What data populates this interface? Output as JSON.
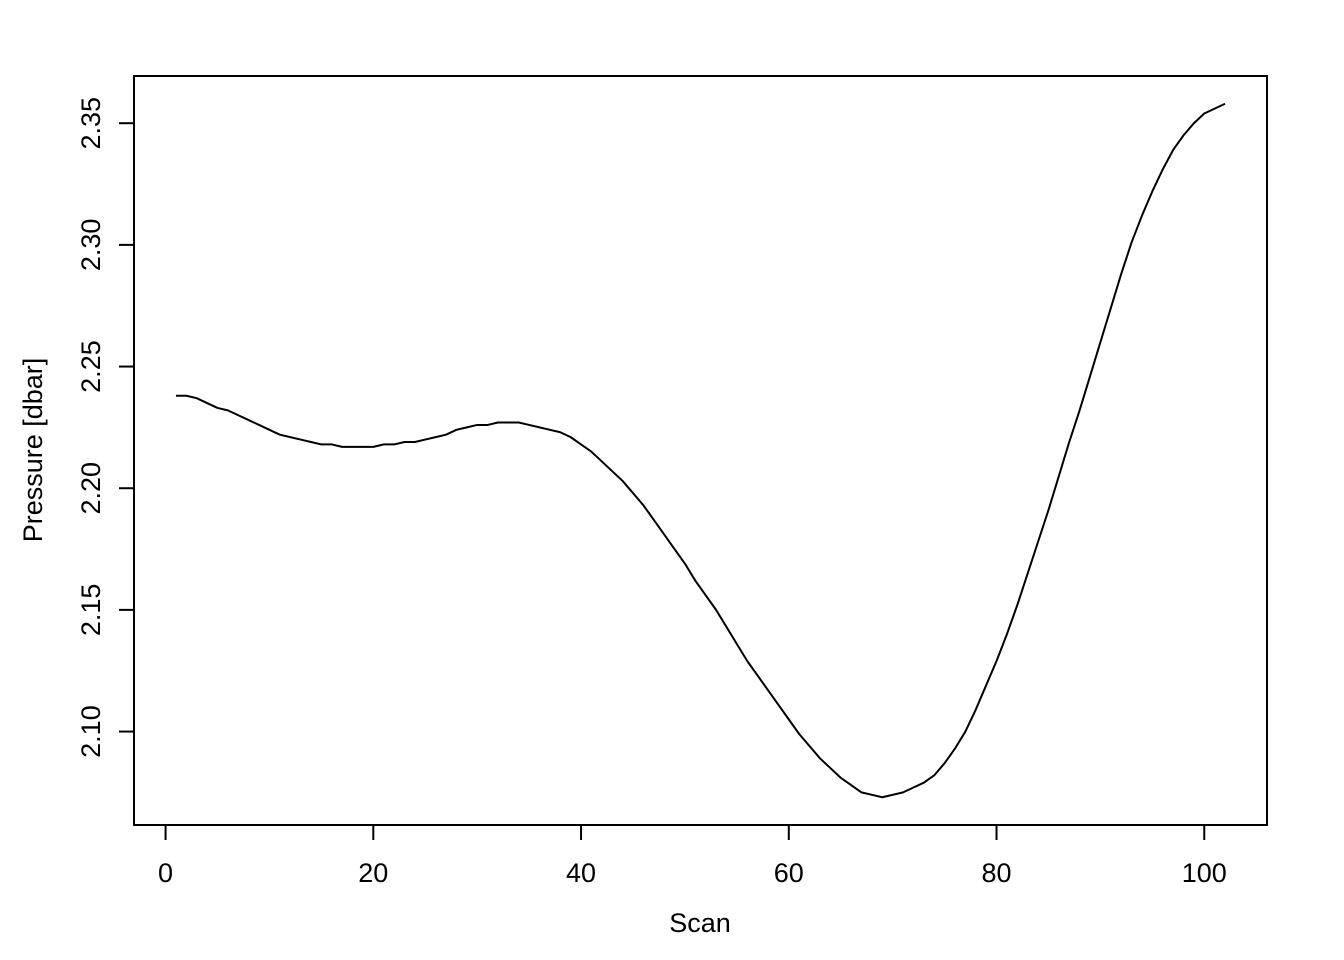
{
  "chart_data": {
    "type": "line",
    "xlabel": "Scan",
    "ylabel": "Pressure [dbar]",
    "x": [
      1,
      2,
      3,
      4,
      5,
      6,
      7,
      8,
      9,
      10,
      11,
      12,
      13,
      14,
      15,
      16,
      17,
      18,
      19,
      20,
      21,
      22,
      23,
      24,
      25,
      26,
      27,
      28,
      29,
      30,
      31,
      32,
      33,
      34,
      35,
      36,
      37,
      38,
      39,
      40,
      41,
      42,
      43,
      44,
      45,
      46,
      47,
      48,
      49,
      50,
      51,
      52,
      53,
      54,
      55,
      56,
      57,
      58,
      59,
      60,
      61,
      62,
      63,
      64,
      65,
      66,
      67,
      68,
      69,
      70,
      71,
      72,
      73,
      74,
      75,
      76,
      77,
      78,
      79,
      80,
      81,
      82,
      83,
      84,
      85,
      86,
      87,
      88,
      89,
      90,
      91,
      92,
      93,
      94,
      95,
      96,
      97,
      98,
      99,
      100,
      101,
      102
    ],
    "y": [
      2.238,
      2.238,
      2.237,
      2.235,
      2.233,
      2.232,
      2.23,
      2.228,
      2.226,
      2.224,
      2.222,
      2.221,
      2.22,
      2.219,
      2.218,
      2.218,
      2.217,
      2.217,
      2.217,
      2.217,
      2.218,
      2.218,
      2.219,
      2.219,
      2.22,
      2.221,
      2.222,
      2.224,
      2.225,
      2.226,
      2.226,
      2.227,
      2.227,
      2.227,
      2.226,
      2.225,
      2.224,
      2.223,
      2.221,
      2.218,
      2.215,
      2.211,
      2.207,
      2.203,
      2.198,
      2.193,
      2.187,
      2.181,
      2.175,
      2.169,
      2.162,
      2.156,
      2.15,
      2.143,
      2.136,
      2.129,
      2.123,
      2.117,
      2.111,
      2.105,
      2.099,
      2.094,
      2.089,
      2.085,
      2.081,
      2.078,
      2.075,
      2.074,
      2.073,
      2.074,
      2.075,
      2.077,
      2.079,
      2.082,
      2.087,
      2.093,
      2.1,
      2.109,
      2.119,
      2.129,
      2.14,
      2.152,
      2.165,
      2.178,
      2.191,
      2.205,
      2.219,
      2.232,
      2.246,
      2.26,
      2.274,
      2.288,
      2.301,
      2.312,
      2.322,
      2.331,
      2.339,
      2.345,
      2.35,
      2.354,
      2.356,
      2.358
    ],
    "color": "#000000",
    "xlim": [
      -3.04,
      106.04
    ],
    "xticks": [
      0,
      20,
      40,
      60,
      80,
      100
    ],
    "ylim": [
      2.0616,
      2.3694
    ],
    "yticks": [
      {
        "value": 2.1,
        "label": "2.10"
      },
      2.15,
      {
        "value": 2.2,
        "label": "2.20"
      },
      2.25,
      {
        "value": 2.3,
        "label": "2.30"
      },
      2.35
    ]
  }
}
